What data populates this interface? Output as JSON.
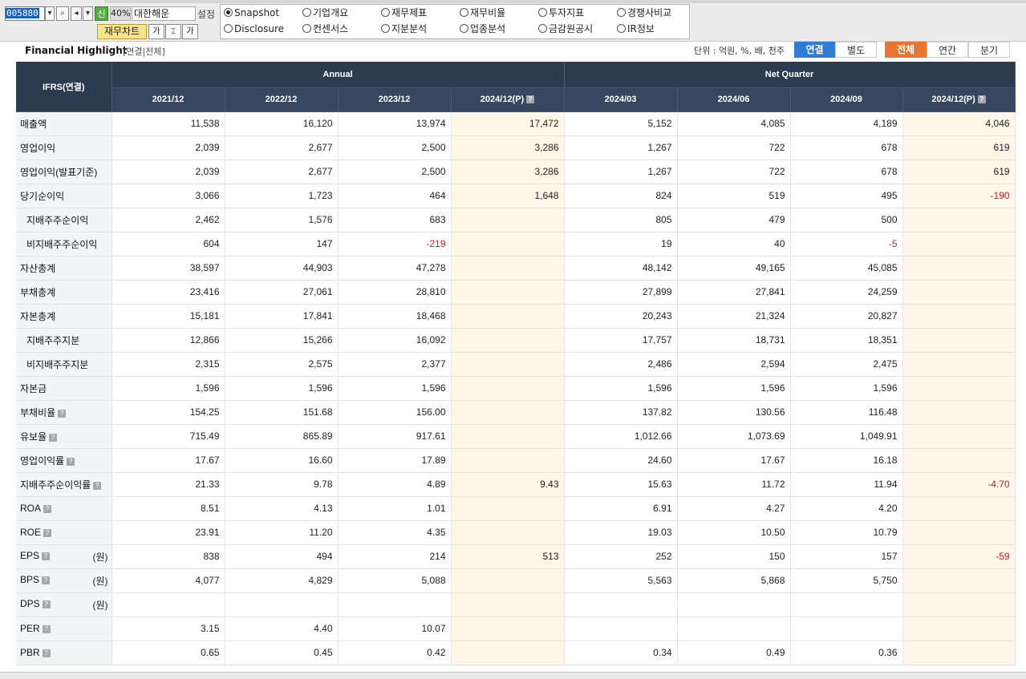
{
  "toolbar": {
    "stock_code": "005880",
    "sin_label": "신",
    "percent": "40%",
    "company_name": "대한해운",
    "settings_label": "설정",
    "chart_button": "재무차트",
    "font_button": "가",
    "fit_button": "⌶",
    "font_up_button": "가"
  },
  "menu": {
    "options": [
      {
        "label": "Snapshot",
        "selected": true
      },
      {
        "label": "기업개요",
        "selected": false
      },
      {
        "label": "재무제표",
        "selected": false
      },
      {
        "label": "재무비율",
        "selected": false
      },
      {
        "label": "투자지표",
        "selected": false
      },
      {
        "label": "경쟁사비교",
        "selected": false
      },
      {
        "label": "Disclosure",
        "selected": false
      },
      {
        "label": "컨센서스",
        "selected": false
      },
      {
        "label": "지분분석",
        "selected": false
      },
      {
        "label": "업종분석",
        "selected": false
      },
      {
        "label": "금감원공시",
        "selected": false
      },
      {
        "label": "IR정보",
        "selected": false
      }
    ]
  },
  "section": {
    "title": "Financial Highlight",
    "subtitle": "[연결|전체]",
    "unit": "단위 : 억원, %, 배, 천주",
    "toggle1": [
      "연결",
      "별도"
    ],
    "toggle2": [
      "전체",
      "연간",
      "분기"
    ]
  },
  "table": {
    "corner": "IFRS(연결)",
    "group_annual": "Annual",
    "group_quarter": "Net Quarter",
    "columns": [
      "2021/12",
      "2022/12",
      "2023/12",
      "2024/12(P)",
      "2024/03",
      "2024/06",
      "2024/09",
      "2024/12(P)"
    ],
    "rows": [
      {
        "label": "매출액",
        "indent": false,
        "help": false,
        "unit": "",
        "values": [
          "11,538",
          "16,120",
          "13,974",
          "17,472",
          "5,152",
          "4,085",
          "4,189",
          "4,046"
        ]
      },
      {
        "label": "영업이익",
        "indent": false,
        "help": false,
        "unit": "",
        "values": [
          "2,039",
          "2,677",
          "2,500",
          "3,286",
          "1,267",
          "722",
          "678",
          "619"
        ]
      },
      {
        "label": "영업이익(발표기준)",
        "indent": false,
        "help": false,
        "unit": "",
        "values": [
          "2,039",
          "2,677",
          "2,500",
          "3,286",
          "1,267",
          "722",
          "678",
          "619"
        ]
      },
      {
        "label": "당기순이익",
        "indent": false,
        "help": false,
        "unit": "",
        "values": [
          "3,066",
          "1,723",
          "464",
          "1,648",
          "824",
          "519",
          "495",
          "-190"
        ]
      },
      {
        "label": "지배주주순이익",
        "indent": true,
        "help": false,
        "unit": "",
        "values": [
          "2,462",
          "1,576",
          "683",
          "",
          "805",
          "479",
          "500",
          ""
        ]
      },
      {
        "label": "비지배주주순이익",
        "indent": true,
        "help": false,
        "unit": "",
        "values": [
          "604",
          "147",
          "-219",
          "",
          "19",
          "40",
          "-5",
          ""
        ]
      },
      {
        "label": "자산총계",
        "indent": false,
        "help": false,
        "unit": "",
        "values": [
          "38,597",
          "44,903",
          "47,278",
          "",
          "48,142",
          "49,165",
          "45,085",
          ""
        ]
      },
      {
        "label": "부채총계",
        "indent": false,
        "help": false,
        "unit": "",
        "values": [
          "23,416",
          "27,061",
          "28,810",
          "",
          "27,899",
          "27,841",
          "24,259",
          ""
        ]
      },
      {
        "label": "자본총계",
        "indent": false,
        "help": false,
        "unit": "",
        "values": [
          "15,181",
          "17,841",
          "18,468",
          "",
          "20,243",
          "21,324",
          "20,827",
          ""
        ]
      },
      {
        "label": "지배주주지분",
        "indent": true,
        "help": false,
        "unit": "",
        "values": [
          "12,866",
          "15,266",
          "16,092",
          "",
          "17,757",
          "18,731",
          "18,351",
          ""
        ]
      },
      {
        "label": "비지배주주지분",
        "indent": true,
        "help": false,
        "unit": "",
        "values": [
          "2,315",
          "2,575",
          "2,377",
          "",
          "2,486",
          "2,594",
          "2,475",
          ""
        ]
      },
      {
        "label": "자본금",
        "indent": false,
        "help": false,
        "unit": "",
        "values": [
          "1,596",
          "1,596",
          "1,596",
          "",
          "1,596",
          "1,596",
          "1,596",
          ""
        ]
      },
      {
        "label": "부채비율",
        "indent": false,
        "help": true,
        "unit": "",
        "values": [
          "154.25",
          "151.68",
          "156.00",
          "",
          "137.82",
          "130.56",
          "116.48",
          ""
        ]
      },
      {
        "label": "유보율",
        "indent": false,
        "help": true,
        "unit": "",
        "values": [
          "715.49",
          "865.89",
          "917.61",
          "",
          "1,012.66",
          "1,073.69",
          "1,049.91",
          ""
        ]
      },
      {
        "label": "영업이익률",
        "indent": false,
        "help": true,
        "unit": "",
        "values": [
          "17.67",
          "16.60",
          "17.89",
          "",
          "24.60",
          "17.67",
          "16.18",
          ""
        ]
      },
      {
        "label": "지배주주순이익률",
        "indent": false,
        "help": true,
        "unit": "",
        "values": [
          "21.33",
          "9.78",
          "4.89",
          "9.43",
          "15.63",
          "11.72",
          "11.94",
          "-4.70"
        ]
      },
      {
        "label": "ROA",
        "indent": false,
        "help": true,
        "unit": "",
        "values": [
          "8.51",
          "4.13",
          "1.01",
          "",
          "6.91",
          "4.27",
          "4.20",
          ""
        ]
      },
      {
        "label": "ROE",
        "indent": false,
        "help": true,
        "unit": "",
        "values": [
          "23.91",
          "11.20",
          "4.35",
          "",
          "19.03",
          "10.50",
          "10.79",
          ""
        ]
      },
      {
        "label": "EPS",
        "indent": false,
        "help": true,
        "unit": "(원)",
        "values": [
          "838",
          "494",
          "214",
          "513",
          "252",
          "150",
          "157",
          "-59"
        ]
      },
      {
        "label": "BPS",
        "indent": false,
        "help": true,
        "unit": "(원)",
        "values": [
          "4,077",
          "4,829",
          "5,088",
          "",
          "5,563",
          "5,868",
          "5,750",
          ""
        ]
      },
      {
        "label": "DPS",
        "indent": false,
        "help": true,
        "unit": "(원)",
        "values": [
          "",
          "",
          "",
          "",
          "",
          "",
          "",
          ""
        ]
      },
      {
        "label": "PER",
        "indent": false,
        "help": true,
        "unit": "",
        "values": [
          "3.15",
          "4.40",
          "10.07",
          "",
          "",
          "",
          "",
          ""
        ]
      },
      {
        "label": "PBR",
        "indent": false,
        "help": true,
        "unit": "",
        "values": [
          "0.65",
          "0.45",
          "0.42",
          "",
          "0.34",
          "0.49",
          "0.36",
          ""
        ]
      }
    ]
  },
  "colors": {
    "header_bg": "#2c3b4f",
    "highlight_col": "#fdf6e9",
    "negative": "#d31b1b",
    "accent_blue": "#2f7cd6",
    "accent_orange": "#e87530"
  }
}
